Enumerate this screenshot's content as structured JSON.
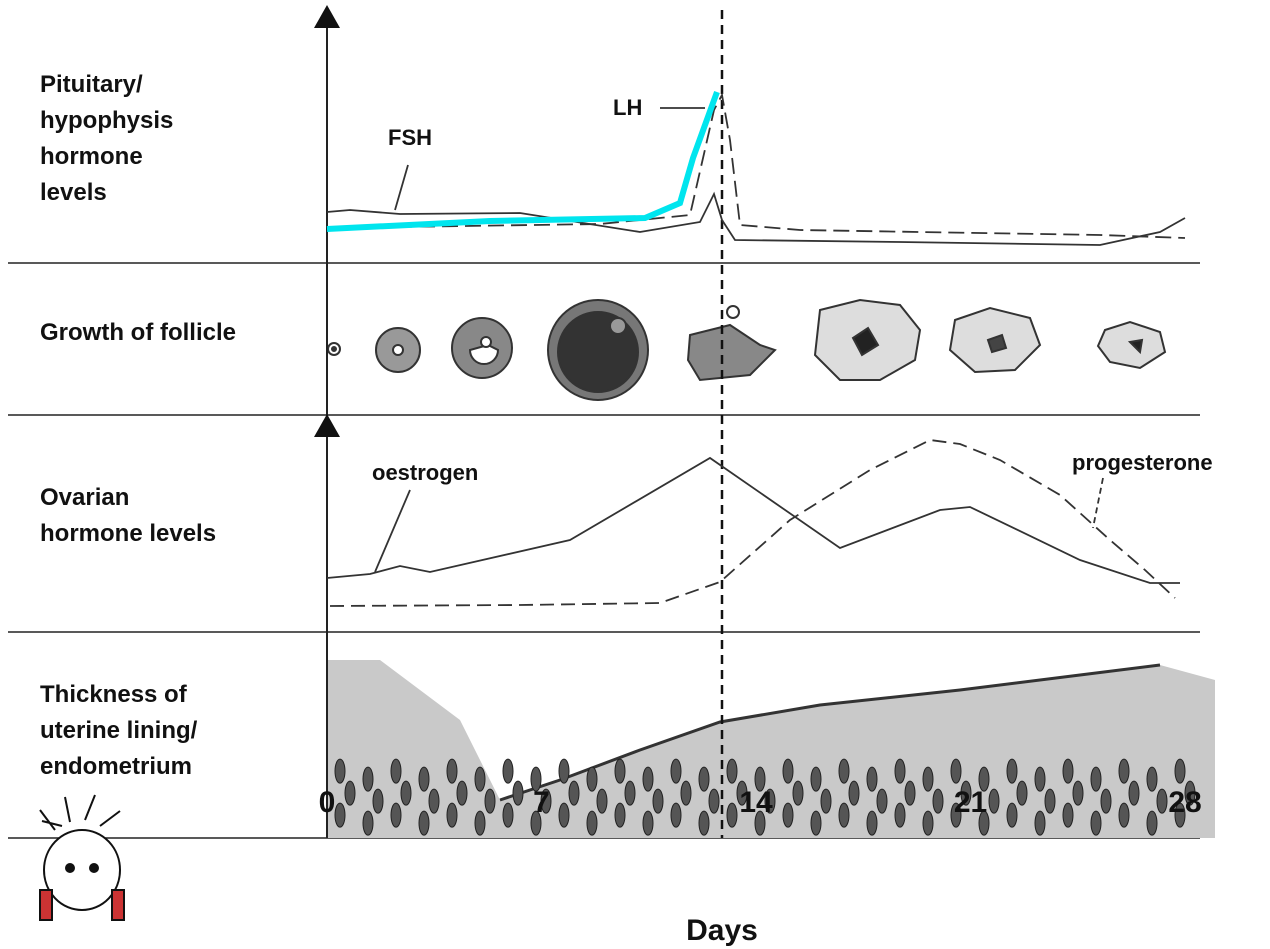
{
  "rows": [
    {
      "label": [
        "Pituitary/",
        "hypophysis",
        "hormone",
        "levels"
      ]
    },
    {
      "label": [
        "Growth of follicle"
      ]
    },
    {
      "label": [
        "Ovarian",
        "hormone levels"
      ]
    },
    {
      "label": [
        "Thickness of",
        "uterine lining/",
        "endometrium"
      ]
    }
  ],
  "curve_labels": [
    "FSH",
    "LH",
    "oestrogen",
    "progesterone"
  ],
  "x_axis": {
    "ticks": [
      0,
      7,
      14,
      21,
      28
    ],
    "title": "Days"
  }
}
